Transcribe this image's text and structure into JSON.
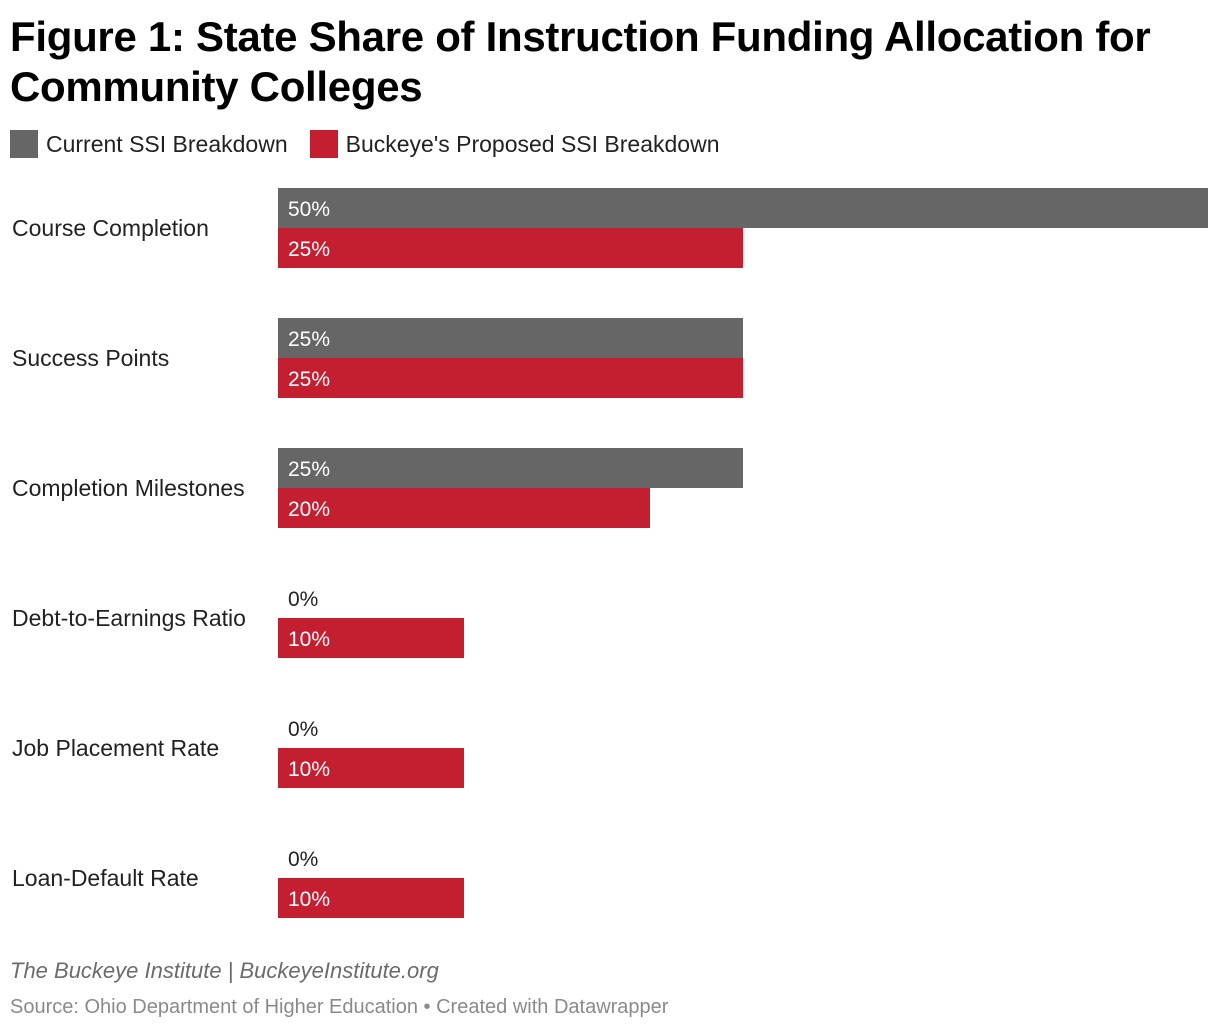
{
  "colors": {
    "current": "#666666",
    "proposed": "#c41f31",
    "label_inside": "#ffffff",
    "label_outside": "#222222"
  },
  "chart_data": {
    "type": "bar",
    "orientation": "horizontal",
    "title": "Figure 1: State Share of Instruction Funding Allocation for Community Colleges",
    "categories": [
      "Course Completion",
      "Success Points",
      "Completion Milestones",
      "Debt-to-Earnings Ratio",
      "Job Placement Rate",
      "Loan-Default Rate"
    ],
    "series": [
      {
        "name": "Current SSI Breakdown",
        "values": [
          50,
          25,
          25,
          0,
          0,
          0
        ],
        "labels": [
          "50%",
          "25%",
          "25%",
          "0%",
          "0%",
          "0%"
        ]
      },
      {
        "name": "Buckeye's Proposed SSI Breakdown",
        "values": [
          25,
          25,
          20,
          10,
          10,
          10
        ],
        "labels": [
          "25%",
          "25%",
          "20%",
          "10%",
          "10%",
          "10%"
        ]
      }
    ],
    "xlim": [
      0,
      50
    ],
    "unit": "%",
    "grid": false,
    "legend_position": "top-left"
  },
  "footer": {
    "credit": "The Buckeye Institute | BuckeyeInstitute.org",
    "source": "Source: Ohio Department of Higher Education • Created with Datawrapper"
  }
}
